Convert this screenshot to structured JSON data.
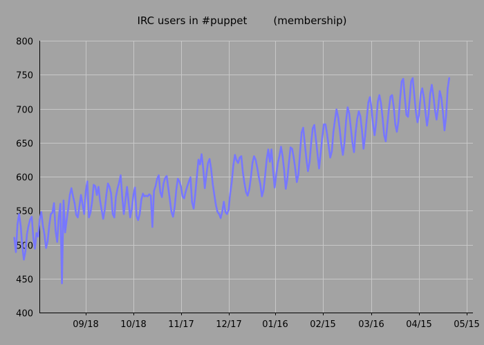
{
  "chart_data": {
    "type": "line",
    "title_main": "IRC users in #puppet",
    "title_suffix": "(membership)",
    "xlabel": "",
    "ylabel": "",
    "ylim": [
      400,
      800
    ],
    "y_ticks": [
      400,
      450,
      500,
      550,
      600,
      650,
      700,
      750,
      800
    ],
    "x_ticks": [
      "09/18",
      "10/18",
      "11/17",
      "12/17",
      "01/16",
      "02/15",
      "03/16",
      "04/15",
      "05/15"
    ],
    "grid": true,
    "legend": "none",
    "line_color": "#7777ff",
    "series": [
      {
        "x_day_start": -45,
        "x_day_step": 1,
        "values": [
          510,
          489,
          530,
          545,
          528,
          498,
          478,
          490,
          516,
          528,
          537,
          541,
          510,
          494,
          517,
          512,
          537,
          548,
          528,
          515,
          495,
          505,
          528,
          545,
          547,
          561,
          520,
          504,
          540,
          560,
          443,
          565,
          518,
          537,
          553,
          573,
          583,
          571,
          561,
          544,
          540,
          556,
          573,
          559,
          545,
          578,
          593,
          540,
          547,
          563,
          588,
          586,
          573,
          585,
          565,
          551,
          538,
          552,
          573,
          590,
          585,
          575,
          545,
          540,
          570,
          582,
          591,
          602,
          570,
          545,
          566,
          585,
          562,
          540,
          552,
          573,
          584,
          542,
          536,
          545,
          566,
          575,
          571,
          572,
          571,
          574,
          572,
          526,
          579,
          586,
          597,
          602,
          577,
          570,
          590,
          598,
          601,
          583,
          566,
          548,
          541,
          555,
          580,
          597,
          593,
          585,
          571,
          568,
          578,
          586,
          593,
          599,
          562,
          553,
          574,
          600,
          625,
          618,
          633,
          612,
          583,
          603,
          620,
          626,
          611,
          589,
          573,
          558,
          548,
          545,
          539,
          548,
          563,
          548,
          545,
          551,
          575,
          592,
          617,
          632,
          624,
          620,
          628,
          630,
          606,
          590,
          577,
          572,
          581,
          598,
          620,
          630,
          625,
          614,
          600,
          589,
          571,
          580,
          601,
          625,
          640,
          622,
          640,
          610,
          584,
          603,
          620,
          630,
          644,
          630,
          609,
          582,
          597,
          621,
          643,
          641,
          628,
          611,
          592,
          603,
          635,
          665,
          672,
          649,
          626,
          608,
          621,
          649,
          671,
          676,
          655,
          633,
          612,
          634,
          658,
          677,
          677,
          663,
          645,
          628,
          637,
          665,
          683,
          699,
          688,
          670,
          648,
          632,
          650,
          682,
          702,
          693,
          672,
          650,
          636,
          665,
          685,
          696,
          689,
          668,
          641,
          660,
          685,
          709,
          717,
          701,
          677,
          661,
          680,
          710,
          720,
          708,
          687,
          661,
          652,
          677,
          700,
          718,
          720,
          703,
          677,
          666,
          682,
          714,
          740,
          744,
          716,
          691,
          688,
          712,
          740,
          745,
          720,
          695,
          680,
          692,
          721,
          730,
          717,
          695,
          675,
          692,
          722,
          735,
          719,
          698,
          684,
          701,
          726,
          716,
          695,
          668,
          690,
          730,
          745
        ]
      }
    ]
  }
}
